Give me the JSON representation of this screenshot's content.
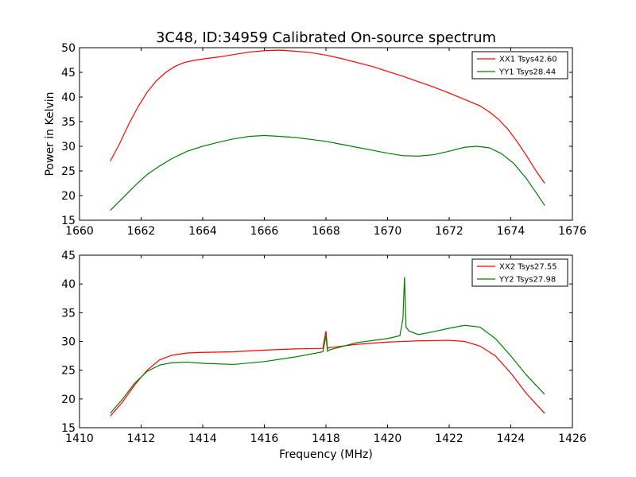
{
  "chart_data": [
    {
      "type": "line",
      "title": "3C48, ID:34959 Calibrated On-source spectrum",
      "xlabel": "",
      "ylabel": "Power in Kelvin",
      "xlim": [
        1660,
        1676
      ],
      "ylim": [
        15,
        50
      ],
      "xticks": [
        1660,
        1662,
        1664,
        1666,
        1668,
        1670,
        1672,
        1674,
        1676
      ],
      "yticks": [
        15,
        20,
        25,
        30,
        35,
        40,
        45,
        50
      ],
      "grid": false,
      "legend": "top-right",
      "series": [
        {
          "name": "XX1 Tsys42.60",
          "color": "#ff0000",
          "x": [
            1661.0,
            1661.3,
            1661.6,
            1661.9,
            1662.2,
            1662.5,
            1662.8,
            1663.1,
            1663.4,
            1663.7,
            1664.0,
            1664.5,
            1665.0,
            1665.5,
            1666.0,
            1666.5,
            1667.0,
            1667.5,
            1668.0,
            1668.5,
            1669.0,
            1669.5,
            1670.0,
            1670.5,
            1671.0,
            1671.5,
            1672.0,
            1672.5,
            1673.0,
            1673.3,
            1673.6,
            1673.9,
            1674.2,
            1674.5,
            1674.8,
            1675.1
          ],
          "y": [
            27.0,
            30.5,
            34.5,
            38.0,
            41.0,
            43.3,
            45.0,
            46.2,
            47.0,
            47.4,
            47.7,
            48.1,
            48.6,
            49.1,
            49.4,
            49.5,
            49.3,
            49.0,
            48.5,
            47.8,
            47.0,
            46.2,
            45.2,
            44.2,
            43.1,
            42.0,
            40.8,
            39.5,
            38.2,
            37.0,
            35.5,
            33.5,
            31.0,
            28.2,
            25.2,
            22.5
          ]
        },
        {
          "name": "YY1 Tsys28.44",
          "color": "#008000",
          "x": [
            1661.0,
            1661.4,
            1661.8,
            1662.2,
            1662.6,
            1663.0,
            1663.5,
            1664.0,
            1664.5,
            1665.0,
            1665.5,
            1666.0,
            1666.5,
            1667.0,
            1667.5,
            1668.0,
            1668.5,
            1669.0,
            1669.5,
            1670.0,
            1670.5,
            1671.0,
            1671.5,
            1672.0,
            1672.5,
            1672.9,
            1673.3,
            1673.7,
            1674.1,
            1674.5,
            1674.8,
            1675.1
          ],
          "y": [
            17.0,
            19.5,
            22.0,
            24.3,
            26.0,
            27.5,
            29.0,
            30.0,
            30.8,
            31.5,
            32.0,
            32.2,
            32.0,
            31.8,
            31.4,
            31.0,
            30.4,
            29.8,
            29.2,
            28.6,
            28.1,
            28.0,
            28.3,
            29.0,
            29.8,
            30.0,
            29.7,
            28.5,
            26.5,
            23.5,
            20.8,
            18.0
          ]
        }
      ]
    },
    {
      "type": "line",
      "title": "",
      "xlabel": "Frequency (MHz)",
      "ylabel": "",
      "xlim": [
        1410,
        1426
      ],
      "ylim": [
        15,
        45
      ],
      "xticks": [
        1410,
        1412,
        1414,
        1416,
        1418,
        1420,
        1422,
        1424,
        1426
      ],
      "yticks": [
        15,
        20,
        25,
        30,
        35,
        40,
        45
      ],
      "grid": false,
      "legend": "top-right",
      "series": [
        {
          "name": "XX2 Tsys27.55",
          "color": "#ff0000",
          "x": [
            1411.0,
            1411.4,
            1411.8,
            1412.2,
            1412.6,
            1413.0,
            1413.5,
            1414.0,
            1415.0,
            1416.0,
            1417.0,
            1417.9,
            1418.0,
            1418.05,
            1418.1,
            1419.0,
            1420.0,
            1421.0,
            1422.0,
            1422.5,
            1423.0,
            1423.5,
            1424.0,
            1424.5,
            1425.1
          ],
          "y": [
            17.0,
            19.5,
            22.5,
            25.0,
            26.8,
            27.6,
            28.0,
            28.1,
            28.2,
            28.5,
            28.7,
            28.8,
            31.8,
            28.8,
            28.9,
            29.5,
            29.9,
            30.1,
            30.2,
            30.0,
            29.2,
            27.5,
            24.5,
            21.0,
            17.5
          ]
        },
        {
          "name": "YY2 Tsys27.98",
          "color": "#008000",
          "x": [
            1411.0,
            1411.4,
            1411.8,
            1412.2,
            1412.6,
            1413.0,
            1413.5,
            1414.0,
            1415.0,
            1416.0,
            1417.0,
            1417.9,
            1418.0,
            1418.05,
            1418.1,
            1419.0,
            1420.0,
            1420.4,
            1420.5,
            1420.55,
            1420.6,
            1420.7,
            1421.0,
            1421.5,
            1422.0,
            1422.5,
            1423.0,
            1423.5,
            1424.0,
            1424.5,
            1425.1
          ],
          "y": [
            17.5,
            20.0,
            22.8,
            24.8,
            25.9,
            26.3,
            26.4,
            26.2,
            26.0,
            26.5,
            27.3,
            28.2,
            31.0,
            28.3,
            28.5,
            29.8,
            30.5,
            31.0,
            34.0,
            41.2,
            32.5,
            31.8,
            31.2,
            31.7,
            32.3,
            32.8,
            32.5,
            30.5,
            27.5,
            24.2,
            20.8
          ]
        }
      ]
    }
  ]
}
